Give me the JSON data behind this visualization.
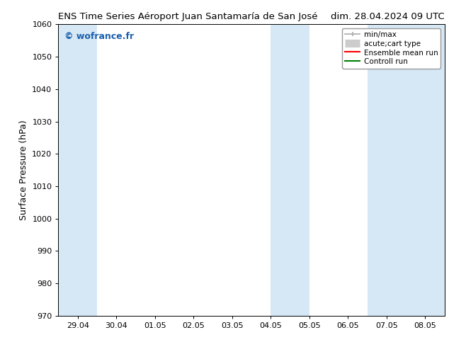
{
  "title_left": "ENS Time Series Aéroport Juan Santamaría de San José",
  "title_right": "dim. 28.04.2024 09 UTC",
  "ylabel": "Surface Pressure (hPa)",
  "ylim": [
    970,
    1060
  ],
  "yticks": [
    970,
    980,
    990,
    1000,
    1010,
    1020,
    1030,
    1040,
    1050,
    1060
  ],
  "xtick_labels": [
    "29.04",
    "30.04",
    "01.05",
    "02.05",
    "03.05",
    "04.05",
    "05.05",
    "06.05",
    "07.05",
    "08.05"
  ],
  "shaded_bands": [
    {
      "xmin": -0.5,
      "xmax": 0.5
    },
    {
      "xmin": 5.0,
      "xmax": 6.0
    },
    {
      "xmin": 7.5,
      "xmax": 9.5
    }
  ],
  "shaded_color": "#d6e8f5",
  "watermark": "© wofrance.fr",
  "watermark_color": "#1a5fac",
  "legend_entries": [
    {
      "label": "min/max",
      "color": "#aaaaaa",
      "lw": 1.2,
      "style": "line_with_caps"
    },
    {
      "label": "acute;cart type",
      "color": "#cccccc",
      "lw": 8,
      "style": "thick"
    },
    {
      "label": "Ensemble mean run",
      "color": "red",
      "lw": 1.5,
      "style": "line"
    },
    {
      "label": "Controll run",
      "color": "green",
      "lw": 1.5,
      "style": "line"
    }
  ],
  "bg_color": "#ffffff",
  "title_fontsize": 9.5,
  "tick_fontsize": 8,
  "ylabel_fontsize": 9
}
